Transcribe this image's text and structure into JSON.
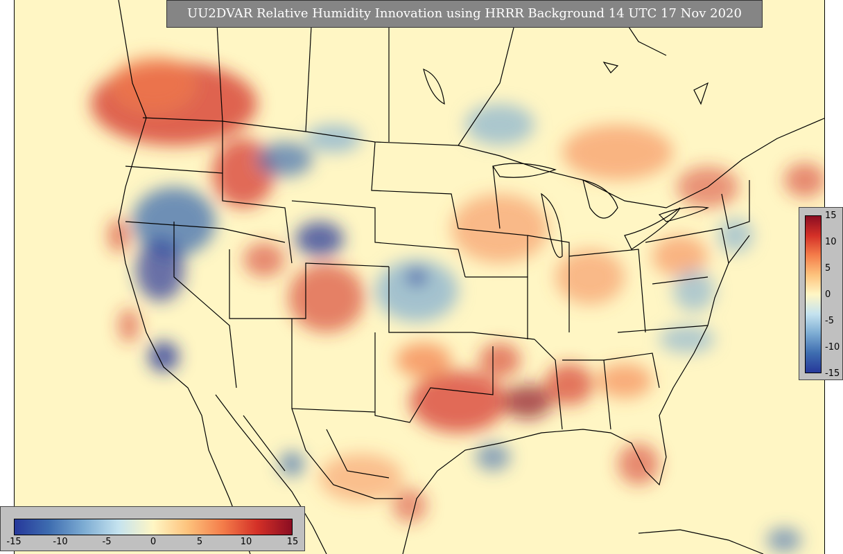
{
  "title": "UU2DVAR Relative Humidity Innovation using HRRR Background 14 UTC 17 Nov 2020",
  "colorbar_right": {
    "ticks": [
      "15",
      "10",
      "5",
      "0",
      "-5",
      "-10",
      "-15"
    ],
    "min": -15,
    "max": 15
  },
  "colorbar_bottom": {
    "ticks": [
      "-15",
      "-10",
      "-5",
      "0",
      "5",
      "10",
      "15"
    ],
    "min": -15,
    "max": 15
  },
  "colors": {
    "ocean_background": "#fff6c4",
    "strong_negative": "#26389a",
    "moderate_negative": "#7dacd3",
    "neutral": "#fff6c4",
    "moderate_positive": "#f47d4a",
    "strong_positive": "#8b0d22",
    "boundary_lines": "#000000",
    "panel_gray": "#c0c0c0",
    "title_gray": "#858585"
  }
}
